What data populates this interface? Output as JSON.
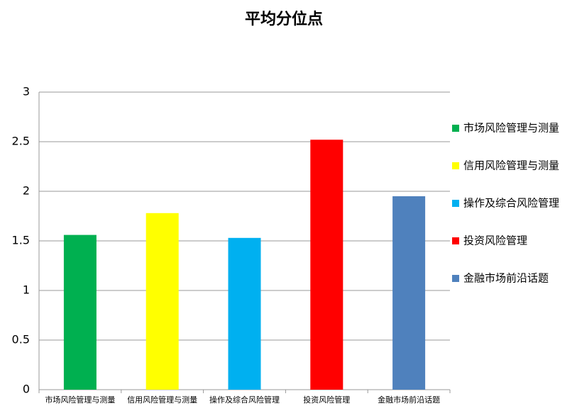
{
  "chart_data": {
    "type": "bar",
    "title": "平均分位点",
    "categories": [
      "市场风险管理与测量",
      "信用风险管理与测量",
      "操作及综合风险管理",
      "投资风险管理",
      "金融市场前沿话题"
    ],
    "values": [
      1.56,
      1.78,
      1.53,
      2.52,
      1.95
    ],
    "colors": [
      "#00b050",
      "#ffff00",
      "#00b0f0",
      "#ff0000",
      "#4f81bd"
    ],
    "ylim": [
      0,
      3
    ],
    "yticks": [
      0,
      0.5,
      1,
      1.5,
      2,
      2.5,
      3
    ],
    "grid": true,
    "legend": "right"
  }
}
